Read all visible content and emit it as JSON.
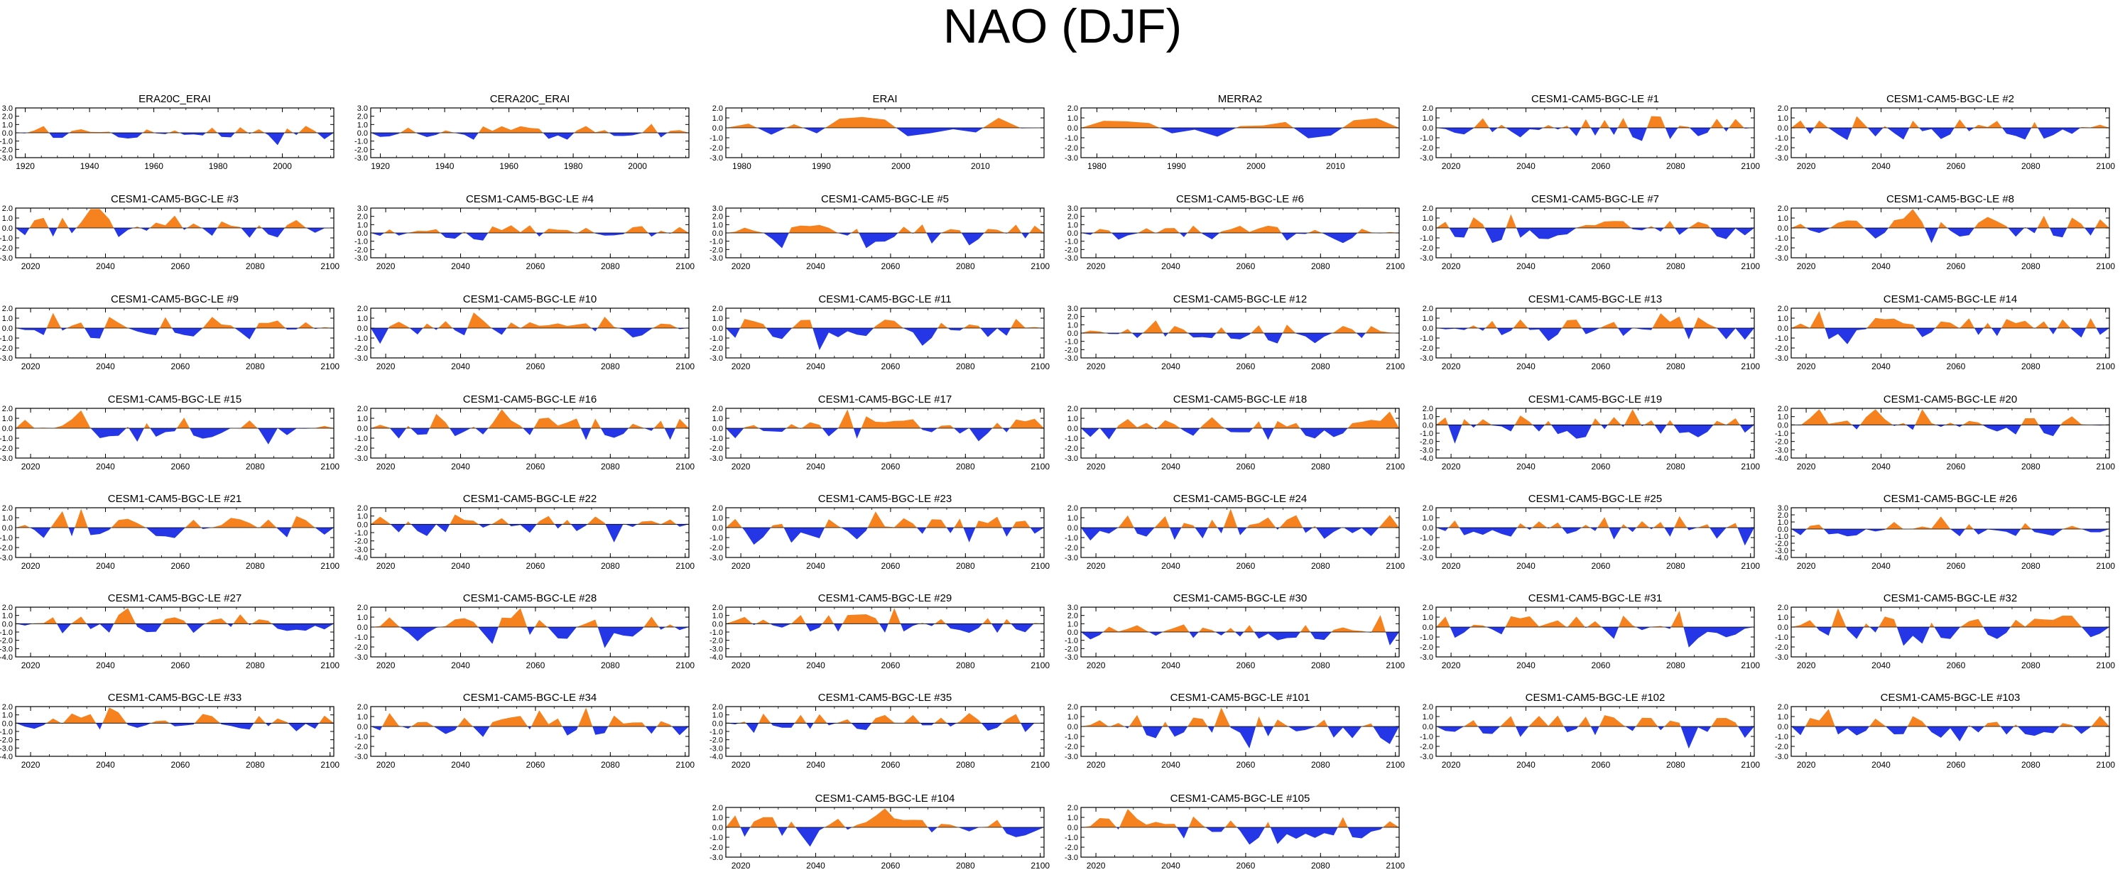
{
  "figure_title": "NAO (DJF)",
  "colors": {
    "positive": "#f5821f",
    "negative": "#2436e6",
    "axis": "#000000"
  },
  "chart_data": [
    {
      "type": "area",
      "title": "ERA20C_ERAI",
      "x_range": [
        1917,
        2016
      ],
      "xticks": [
        1920,
        1940,
        1960,
        1980,
        2000
      ],
      "ylim": [
        -3,
        3
      ],
      "yticks": [
        "3.0",
        "2.0",
        "1.0",
        "0.0",
        "-1.0",
        "-2.0",
        "-3.0"
      ],
      "period": "reanalysis",
      "amp": 0.7
    },
    {
      "type": "area",
      "title": "CERA20C_ERAI",
      "x_range": [
        1917,
        2016
      ],
      "xticks": [
        1920,
        1940,
        1960,
        1980,
        2000
      ],
      "ylim": [
        -3,
        3
      ],
      "yticks": [
        "3.0",
        "2.0",
        "1.0",
        "0.0",
        "-1.0",
        "-2.0",
        "-3.0"
      ],
      "period": "reanalysis",
      "amp": 0.7
    },
    {
      "type": "area",
      "title": "ERAI",
      "x_range": [
        1978,
        2018
      ],
      "xticks": [
        1980,
        1990,
        2000,
        2010
      ],
      "ylim": [
        -3,
        2
      ],
      "yticks": [
        "2.0",
        "1.0",
        "0.0",
        "-1.0",
        "-2.0",
        "-3.0"
      ],
      "period": "short",
      "amp": 0.9
    },
    {
      "type": "area",
      "title": "MERRA2",
      "x_range": [
        1978,
        2018
      ],
      "xticks": [
        1980,
        1990,
        2000,
        2010
      ],
      "ylim": [
        -3,
        2
      ],
      "yticks": [
        "2.0",
        "1.0",
        "0.0",
        "-1.0",
        "-2.0",
        "-3.0"
      ],
      "period": "short",
      "amp": 0.9
    },
    {
      "type": "area",
      "title": "CESM1-CAM5-BGC-LE #1",
      "x_range": [
        2016,
        2101
      ],
      "xticks": [
        2020,
        2040,
        2060,
        2080,
        2100
      ],
      "ylim": [
        -3,
        2
      ],
      "yticks": [
        "2.0",
        "1.0",
        "0.0",
        "-1.0",
        "-2.0",
        "-3.0"
      ],
      "amp": 1
    },
    {
      "type": "area",
      "title": "CESM1-CAM5-BGC-LE #2",
      "x_range": [
        2016,
        2101
      ],
      "xticks": [
        2020,
        2040,
        2060,
        2080,
        2100
      ],
      "ylim": [
        -3,
        2
      ],
      "yticks": [
        "2.0",
        "1.0",
        "0.0",
        "-1.0",
        "-2.0",
        "-3.0"
      ],
      "amp": 1
    },
    {
      "type": "area",
      "title": "CESM1-CAM5-BGC-LE #3",
      "x_range": [
        2016,
        2101
      ],
      "xticks": [
        2020,
        2040,
        2060,
        2080,
        2100
      ],
      "ylim": [
        -3,
        2
      ],
      "yticks": [
        "2.0",
        "1.0",
        "0.0",
        "-1.0",
        "-2.0",
        "-3.0"
      ],
      "amp": 1.1
    },
    {
      "type": "area",
      "title": "CESM1-CAM5-BGC-LE #4",
      "x_range": [
        2016,
        2101
      ],
      "xticks": [
        2020,
        2040,
        2060,
        2080,
        2100
      ],
      "ylim": [
        -3,
        3
      ],
      "yticks": [
        "3.0",
        "2.0",
        "1.0",
        "0.0",
        "-1.0",
        "-2.0",
        "-3.0"
      ],
      "amp": 0.8
    },
    {
      "type": "area",
      "title": "CESM1-CAM5-BGC-LE #5",
      "x_range": [
        2016,
        2101
      ],
      "xticks": [
        2020,
        2040,
        2060,
        2080,
        2100
      ],
      "ylim": [
        -3,
        3
      ],
      "yticks": [
        "3.0",
        "2.0",
        "1.0",
        "0.0",
        "-1.0",
        "-2.0",
        "-3.0"
      ],
      "amp": 0.9
    },
    {
      "type": "area",
      "title": "CESM1-CAM5-BGC-LE #6",
      "x_range": [
        2016,
        2101
      ],
      "xticks": [
        2020,
        2040,
        2060,
        2080,
        2100
      ],
      "ylim": [
        -3,
        3
      ],
      "yticks": [
        "3.0",
        "2.0",
        "1.0",
        "0.0",
        "-1.0",
        "-2.0",
        "-3.0"
      ],
      "amp": 0.8
    },
    {
      "type": "area",
      "title": "CESM1-CAM5-BGC-LE #7",
      "x_range": [
        2016,
        2101
      ],
      "xticks": [
        2020,
        2040,
        2060,
        2080,
        2100
      ],
      "ylim": [
        -3,
        2
      ],
      "yticks": [
        "2.0",
        "1.0",
        "0.0",
        "-1.0",
        "-2.0",
        "-3.0"
      ],
      "amp": 1
    },
    {
      "type": "area",
      "title": "CESM1-CAM5-BGC-LE #8",
      "x_range": [
        2016,
        2101
      ],
      "xticks": [
        2020,
        2040,
        2060,
        2080,
        2100
      ],
      "ylim": [
        -3,
        2
      ],
      "yticks": [
        "2.0",
        "1.0",
        "0.0",
        "-1.0",
        "-2.0",
        "-3.0"
      ],
      "amp": 1
    },
    {
      "type": "area",
      "title": "CESM1-CAM5-BGC-LE #9",
      "x_range": [
        2016,
        2101
      ],
      "xticks": [
        2020,
        2040,
        2060,
        2080,
        2100
      ],
      "ylim": [
        -3,
        2
      ],
      "yticks": [
        "2.0",
        "1.0",
        "0.0",
        "-1.0",
        "-2.0",
        "-3.0"
      ],
      "amp": 1
    },
    {
      "type": "area",
      "title": "CESM1-CAM5-BGC-LE #10",
      "x_range": [
        2016,
        2101
      ],
      "xticks": [
        2020,
        2040,
        2060,
        2080,
        2100
      ],
      "ylim": [
        -3,
        2
      ],
      "yticks": [
        "2.0",
        "1.0",
        "0.0",
        "-1.0",
        "-2.0",
        "-3.0"
      ],
      "amp": 1
    },
    {
      "type": "area",
      "title": "CESM1-CAM5-BGC-LE #11",
      "x_range": [
        2016,
        2101
      ],
      "xticks": [
        2020,
        2040,
        2060,
        2080,
        2100
      ],
      "ylim": [
        -3,
        2
      ],
      "yticks": [
        "2.0",
        "1.0",
        "0.0",
        "-1.0",
        "-2.0",
        "-3.0"
      ],
      "amp": 1
    },
    {
      "type": "area",
      "title": "CESM1-CAM5-BGC-LE #12",
      "x_range": [
        2016,
        2101
      ],
      "xticks": [
        2020,
        2040,
        2060,
        2080,
        2100
      ],
      "ylim": [
        -3,
        3
      ],
      "yticks": [
        "3.0",
        "2.0",
        "1.0",
        "0.0",
        "-1.0",
        "-2.0",
        "-3.0"
      ],
      "amp": 0.8
    },
    {
      "type": "area",
      "title": "CESM1-CAM5-BGC-LE #13",
      "x_range": [
        2016,
        2101
      ],
      "xticks": [
        2020,
        2040,
        2060,
        2080,
        2100
      ],
      "ylim": [
        -3,
        2
      ],
      "yticks": [
        "2.0",
        "1.0",
        "0.0",
        "-1.0",
        "-2.0",
        "-3.0"
      ],
      "amp": 1
    },
    {
      "type": "area",
      "title": "CESM1-CAM5-BGC-LE #14",
      "x_range": [
        2016,
        2101
      ],
      "xticks": [
        2020,
        2040,
        2060,
        2080,
        2100
      ],
      "ylim": [
        -3,
        2
      ],
      "yticks": [
        "2.0",
        "1.0",
        "0.0",
        "-1.0",
        "-2.0",
        "-3.0"
      ],
      "amp": 1
    },
    {
      "type": "area",
      "title": "CESM1-CAM5-BGC-LE #15",
      "x_range": [
        2016,
        2101
      ],
      "xticks": [
        2020,
        2040,
        2060,
        2080,
        2100
      ],
      "ylim": [
        -3,
        2
      ],
      "yticks": [
        "2.0",
        "1.0",
        "0.0",
        "-1.0",
        "-2.0",
        "-3.0"
      ],
      "amp": 0.9
    },
    {
      "type": "area",
      "title": "CESM1-CAM5-BGC-LE #16",
      "x_range": [
        2016,
        2101
      ],
      "xticks": [
        2020,
        2040,
        2060,
        2080,
        2100
      ],
      "ylim": [
        -3,
        2
      ],
      "yticks": [
        "2.0",
        "1.0",
        "0.0",
        "-1.0",
        "-2.0",
        "-3.0"
      ],
      "amp": 1
    },
    {
      "type": "area",
      "title": "CESM1-CAM5-BGC-LE #17",
      "x_range": [
        2016,
        2101
      ],
      "xticks": [
        2020,
        2040,
        2060,
        2080,
        2100
      ],
      "ylim": [
        -3,
        2
      ],
      "yticks": [
        "2.0",
        "1.0",
        "0.0",
        "-1.0",
        "-2.0",
        "-3.0"
      ],
      "amp": 1
    },
    {
      "type": "area",
      "title": "CESM1-CAM5-BGC-LE #18",
      "x_range": [
        2016,
        2101
      ],
      "xticks": [
        2020,
        2040,
        2060,
        2080,
        2100
      ],
      "ylim": [
        -3,
        2
      ],
      "yticks": [
        "2.0",
        "1.0",
        "0.0",
        "-1.0",
        "-2.0",
        "-3.0"
      ],
      "amp": 1
    },
    {
      "type": "area",
      "title": "CESM1-CAM5-BGC-LE #19",
      "x_range": [
        2016,
        2101
      ],
      "xticks": [
        2020,
        2040,
        2060,
        2080,
        2100
      ],
      "ylim": [
        -4,
        2
      ],
      "yticks": [
        "2.0",
        "1.0",
        "0.0",
        "-1.0",
        "-2.0",
        "-3.0",
        "-4.0"
      ],
      "amp": 1
    },
    {
      "type": "area",
      "title": "CESM1-CAM5-BGC-LE #20",
      "x_range": [
        2016,
        2101
      ],
      "xticks": [
        2020,
        2040,
        2060,
        2080,
        2100
      ],
      "ylim": [
        -4,
        2
      ],
      "yticks": [
        "2.0",
        "1.0",
        "0.0",
        "-1.0",
        "-2.0",
        "-3.0",
        "-4.0"
      ],
      "amp": 1
    },
    {
      "type": "area",
      "title": "CESM1-CAM5-BGC-LE #21",
      "x_range": [
        2016,
        2101
      ],
      "xticks": [
        2020,
        2040,
        2060,
        2080,
        2100
      ],
      "ylim": [
        -3,
        2
      ],
      "yticks": [
        "2.0",
        "1.0",
        "0.0",
        "-1.0",
        "-2.0",
        "-3.0"
      ],
      "amp": 1
    },
    {
      "type": "area",
      "title": "CESM1-CAM5-BGC-LE #22",
      "x_range": [
        2016,
        2101
      ],
      "xticks": [
        2020,
        2040,
        2060,
        2080,
        2100
      ],
      "ylim": [
        -4,
        2
      ],
      "yticks": [
        "2.0",
        "1.0",
        "0.0",
        "-1.0",
        "-2.0",
        "-3.0",
        "-4.0"
      ],
      "amp": 1
    },
    {
      "type": "area",
      "title": "CESM1-CAM5-BGC-LE #23",
      "x_range": [
        2016,
        2101
      ],
      "xticks": [
        2020,
        2040,
        2060,
        2080,
        2100
      ],
      "ylim": [
        -3,
        2
      ],
      "yticks": [
        "2.0",
        "1.0",
        "0.0",
        "-1.0",
        "-2.0",
        "-3.0"
      ],
      "amp": 1
    },
    {
      "type": "area",
      "title": "CESM1-CAM5-BGC-LE #24",
      "x_range": [
        2016,
        2101
      ],
      "xticks": [
        2020,
        2040,
        2060,
        2080,
        2100
      ],
      "ylim": [
        -3,
        2
      ],
      "yticks": [
        "2.0",
        "1.0",
        "0.0",
        "-1.0",
        "-2.0",
        "-3.0"
      ],
      "amp": 1.1
    },
    {
      "type": "area",
      "title": "CESM1-CAM5-BGC-LE #25",
      "x_range": [
        2016,
        2101
      ],
      "xticks": [
        2020,
        2040,
        2060,
        2080,
        2100
      ],
      "ylim": [
        -3,
        2
      ],
      "yticks": [
        "2.0",
        "1.0",
        "0.0",
        "-1.0",
        "-2.0",
        "-3.0"
      ],
      "amp": 1
    },
    {
      "type": "area",
      "title": "CESM1-CAM5-BGC-LE #26",
      "x_range": [
        2016,
        2101
      ],
      "xticks": [
        2020,
        2040,
        2060,
        2080,
        2100
      ],
      "ylim": [
        -4,
        3
      ],
      "yticks": [
        "3.0",
        "2.0",
        "1.0",
        "0.0",
        "-1.0",
        "-2.0",
        "-3.0",
        "-4.0"
      ],
      "amp": 0.9
    },
    {
      "type": "area",
      "title": "CESM1-CAM5-BGC-LE #27",
      "x_range": [
        2016,
        2101
      ],
      "xticks": [
        2020,
        2040,
        2060,
        2080,
        2100
      ],
      "ylim": [
        -4,
        2
      ],
      "yticks": [
        "2.0",
        "1.0",
        "0.0",
        "-1.0",
        "-2.0",
        "-3.0",
        "-4.0"
      ],
      "amp": 1
    },
    {
      "type": "area",
      "title": "CESM1-CAM5-BGC-LE #28",
      "x_range": [
        2016,
        2101
      ],
      "xticks": [
        2020,
        2040,
        2060,
        2080,
        2100
      ],
      "ylim": [
        -3,
        2
      ],
      "yticks": [
        "2.0",
        "1.0",
        "0.0",
        "-1.0",
        "-2.0",
        "-3.0"
      ],
      "amp": 1
    },
    {
      "type": "area",
      "title": "CESM1-CAM5-BGC-LE #29",
      "x_range": [
        2016,
        2101
      ],
      "xticks": [
        2020,
        2040,
        2060,
        2080,
        2100
      ],
      "ylim": [
        -4,
        2
      ],
      "yticks": [
        "2.0",
        "1.0",
        "0.0",
        "-1.0",
        "-2.0",
        "-3.0",
        "-4.0"
      ],
      "amp": 1
    },
    {
      "type": "area",
      "title": "CESM1-CAM5-BGC-LE #30",
      "x_range": [
        2016,
        2101
      ],
      "xticks": [
        2020,
        2040,
        2060,
        2080,
        2100
      ],
      "ylim": [
        -3,
        3
      ],
      "yticks": [
        "3.0",
        "2.0",
        "1.0",
        "0.0",
        "-1.0",
        "-2.0",
        "-3.0"
      ],
      "amp": 0.9
    },
    {
      "type": "area",
      "title": "CESM1-CAM5-BGC-LE #31",
      "x_range": [
        2016,
        2101
      ],
      "xticks": [
        2020,
        2040,
        2060,
        2080,
        2100
      ],
      "ylim": [
        -3,
        2
      ],
      "yticks": [
        "2.0",
        "1.0",
        "0.0",
        "-1.0",
        "-2.0",
        "-3.0"
      ],
      "amp": 1
    },
    {
      "type": "area",
      "title": "CESM1-CAM5-BGC-LE #32",
      "x_range": [
        2016,
        2101
      ],
      "xticks": [
        2020,
        2040,
        2060,
        2080,
        2100
      ],
      "ylim": [
        -3,
        2
      ],
      "yticks": [
        "2.0",
        "1.0",
        "0.0",
        "-1.0",
        "-2.0",
        "-3.0"
      ],
      "amp": 1.1
    },
    {
      "type": "area",
      "title": "CESM1-CAM5-BGC-LE #33",
      "x_range": [
        2016,
        2101
      ],
      "xticks": [
        2020,
        2040,
        2060,
        2080,
        2100
      ],
      "ylim": [
        -4,
        2
      ],
      "yticks": [
        "2.0",
        "1.0",
        "0.0",
        "-1.0",
        "-2.0",
        "-3.0",
        "-4.0"
      ],
      "amp": 1
    },
    {
      "type": "area",
      "title": "CESM1-CAM5-BGC-LE #34",
      "x_range": [
        2016,
        2101
      ],
      "xticks": [
        2020,
        2040,
        2060,
        2080,
        2100
      ],
      "ylim": [
        -3,
        2
      ],
      "yticks": [
        "2.0",
        "1.0",
        "0.0",
        "-1.0",
        "-2.0",
        "-3.0"
      ],
      "amp": 1
    },
    {
      "type": "area",
      "title": "CESM1-CAM5-BGC-LE #35",
      "x_range": [
        2016,
        2101
      ],
      "xticks": [
        2020,
        2040,
        2060,
        2080,
        2100
      ],
      "ylim": [
        -4,
        2
      ],
      "yticks": [
        "2.0",
        "1.0",
        "0.0",
        "-1.0",
        "-2.0",
        "-3.0",
        "-4.0"
      ],
      "amp": 1
    },
    {
      "type": "area",
      "title": "CESM1-CAM5-BGC-LE #101",
      "x_range": [
        2016,
        2101
      ],
      "xticks": [
        2020,
        2040,
        2060,
        2080,
        2100
      ],
      "ylim": [
        -3,
        2
      ],
      "yticks": [
        "2.0",
        "1.0",
        "0.0",
        "-1.0",
        "-2.0",
        "-3.0"
      ],
      "amp": 1
    },
    {
      "type": "area",
      "title": "CESM1-CAM5-BGC-LE #102",
      "x_range": [
        2016,
        2101
      ],
      "xticks": [
        2020,
        2040,
        2060,
        2080,
        2100
      ],
      "ylim": [
        -3,
        2
      ],
      "yticks": [
        "2.0",
        "1.0",
        "0.0",
        "-1.0",
        "-2.0",
        "-3.0"
      ],
      "amp": 1
    },
    {
      "type": "area",
      "title": "CESM1-CAM5-BGC-LE #103",
      "x_range": [
        2016,
        2101
      ],
      "xticks": [
        2020,
        2040,
        2060,
        2080,
        2100
      ],
      "ylim": [
        -3,
        2
      ],
      "yticks": [
        "2.0",
        "1.0",
        "0.0",
        "-1.0",
        "-2.0",
        "-3.0"
      ],
      "amp": 1
    },
    {
      "type": "area",
      "title": "CESM1-CAM5-BGC-LE #104",
      "x_range": [
        2016,
        2101
      ],
      "xticks": [
        2020,
        2040,
        2060,
        2080,
        2100
      ],
      "ylim": [
        -3,
        2
      ],
      "yticks": [
        "2.0",
        "1.0",
        "0.0",
        "-1.0",
        "-2.0",
        "-3.0"
      ],
      "amp": 1
    },
    {
      "type": "area",
      "title": "CESM1-CAM5-BGC-LE #105",
      "x_range": [
        2016,
        2101
      ],
      "xticks": [
        2020,
        2040,
        2060,
        2080,
        2100
      ],
      "ylim": [
        -3,
        2
      ],
      "yticks": [
        "2.0",
        "1.0",
        "0.0",
        "-1.0",
        "-2.0",
        "-3.0"
      ],
      "amp": 1
    }
  ]
}
